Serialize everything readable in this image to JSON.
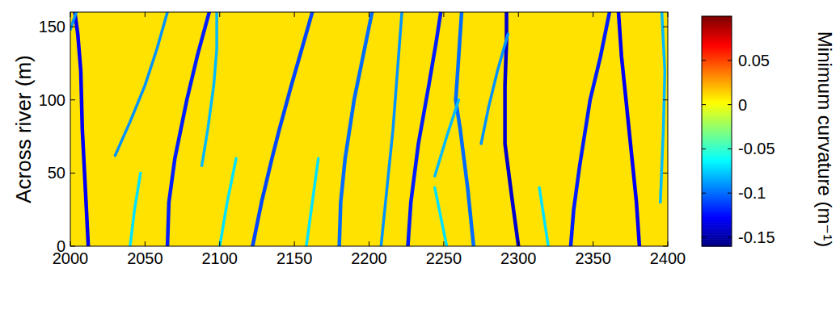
{
  "chart_data": {
    "type": "heatmap",
    "y_label": "Across river (m)",
    "colorbar_label": "Minimum curvature (m⁻¹)",
    "xlim": [
      2000,
      2400
    ],
    "xticks": [
      2000,
      2050,
      2100,
      2150,
      2200,
      2250,
      2300,
      2350,
      2400
    ],
    "ylim": [
      0,
      160
    ],
    "yticks": [
      0,
      50,
      100,
      150
    ],
    "colorbar_lim": [
      -0.16,
      0.1
    ],
    "colorbar_ticks": [
      -0.15,
      -0.1,
      -0.05,
      0,
      0.05
    ],
    "background_value": 0.01,
    "troughs": [
      {
        "x": [
          2012,
          2010,
          2008,
          2007,
          2005,
          2003
        ],
        "y": [
          0,
          40,
          80,
          120,
          145,
          160
        ],
        "value": -0.13
      },
      {
        "x": [
          2000,
          2004
        ],
        "y": [
          148,
          160
        ],
        "value": -0.09
      },
      {
        "x": [
          2065,
          2066,
          2070,
          2078,
          2085,
          2093
        ],
        "y": [
          0,
          30,
          60,
          100,
          130,
          160
        ],
        "value": -0.12
      },
      {
        "x": [
          2030,
          2040,
          2050,
          2058,
          2065
        ],
        "y": [
          62,
          85,
          110,
          135,
          160
        ],
        "value": -0.09
      },
      {
        "x": [
          2088,
          2092,
          2096,
          2098,
          2098
        ],
        "y": [
          55,
          80,
          110,
          135,
          160
        ],
        "value": -0.08
      },
      {
        "x": [
          2122,
          2128,
          2135,
          2140,
          2148,
          2155,
          2162
        ],
        "y": [
          0,
          30,
          60,
          80,
          110,
          135,
          160
        ],
        "value": -0.11
      },
      {
        "x": [
          2180,
          2181,
          2184,
          2190,
          2196,
          2202
        ],
        "y": [
          0,
          30,
          60,
          100,
          130,
          160
        ],
        "value": -0.1
      },
      {
        "x": [
          2208,
          2212,
          2216,
          2219,
          2222
        ],
        "y": [
          0,
          40,
          80,
          120,
          160
        ],
        "value": -0.09
      },
      {
        "x": [
          2226,
          2228,
          2233,
          2240,
          2245,
          2248
        ],
        "y": [
          0,
          30,
          70,
          110,
          140,
          160
        ],
        "value": -0.12
      },
      {
        "x": [
          2270,
          2266,
          2261,
          2258,
          2260,
          2262
        ],
        "y": [
          0,
          40,
          80,
          100,
          130,
          160
        ],
        "value": -0.1
      },
      {
        "x": [
          2244,
          2252,
          2260
        ],
        "y": [
          48,
          75,
          100
        ],
        "value": -0.08
      },
      {
        "x": [
          2300,
          2296,
          2291,
          2291,
          2292,
          2292
        ],
        "y": [
          0,
          30,
          70,
          110,
          140,
          160
        ],
        "value": -0.14
      },
      {
        "x": [
          2275,
          2280,
          2286,
          2293
        ],
        "y": [
          70,
          95,
          120,
          145
        ],
        "value": -0.09
      },
      {
        "x": [
          2335,
          2337,
          2341,
          2348,
          2355,
          2361
        ],
        "y": [
          0,
          25,
          55,
          100,
          130,
          160
        ],
        "value": -0.12
      },
      {
        "x": [
          2381,
          2379,
          2376,
          2372,
          2369,
          2367
        ],
        "y": [
          0,
          30,
          60,
          100,
          130,
          160
        ],
        "value": -0.13
      },
      {
        "x": [
          2395,
          2397,
          2398,
          2396
        ],
        "y": [
          30,
          80,
          120,
          160
        ],
        "value": -0.08
      },
      {
        "x": [
          2040,
          2043,
          2047
        ],
        "y": [
          0,
          25,
          50
        ],
        "value": -0.07
      },
      {
        "x": [
          2100,
          2105,
          2111
        ],
        "y": [
          0,
          30,
          60
        ],
        "value": -0.07
      },
      {
        "x": [
          2158,
          2162,
          2166
        ],
        "y": [
          0,
          30,
          60
        ],
        "value": -0.07
      },
      {
        "x": [
          2252,
          2248,
          2244
        ],
        "y": [
          0,
          20,
          40
        ],
        "value": -0.07
      },
      {
        "x": [
          2320,
          2317,
          2314
        ],
        "y": [
          0,
          20,
          40
        ],
        "value": -0.07
      }
    ]
  }
}
